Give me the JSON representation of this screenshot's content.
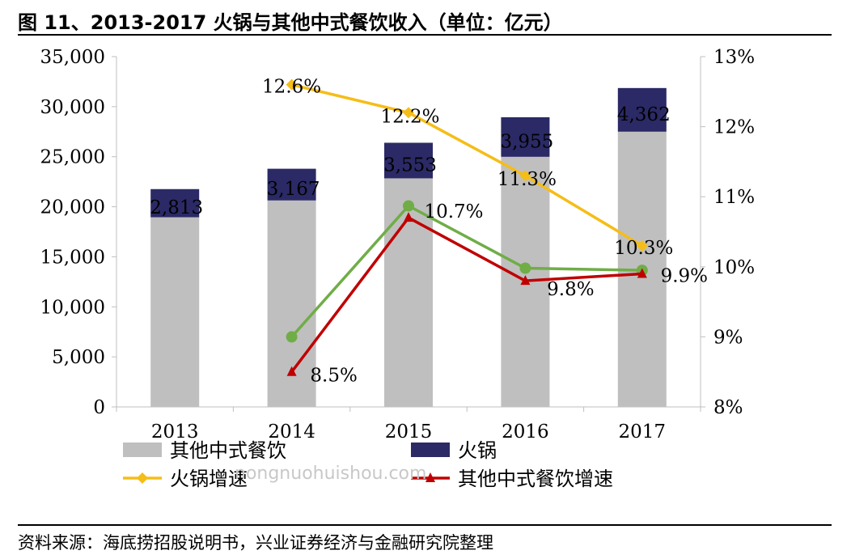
{
  "figure": {
    "title": "图 11、2013-2017 火锅与其他中式餐饮收入（单位：亿元）",
    "source": "资料来源：海底捞招股说明书，兴业证券经济与金融研究院整理",
    "watermark": "nongnuohuishou.com"
  },
  "chart_data": {
    "type": "bar",
    "stacked": true,
    "categories": [
      "2013",
      "2014",
      "2015",
      "2016",
      "2017"
    ],
    "series": [
      {
        "name": "其他中式餐饮",
        "type": "bar",
        "axis": "left",
        "color": "#bfbfbf",
        "values": [
          18950,
          20630,
          22840,
          24990,
          27500
        ]
      },
      {
        "name": "火锅",
        "type": "bar",
        "axis": "left",
        "color": "#2b2a66",
        "values": [
          2813,
          3167,
          3553,
          3955,
          4362
        ],
        "labels": [
          "2,813",
          "3,167",
          "3,553",
          "3,955",
          "4,362"
        ]
      },
      {
        "name": "火锅增速",
        "type": "line",
        "axis": "right",
        "color": "#f5bd18",
        "values": [
          null,
          12.6,
          12.2,
          11.3,
          10.3
        ],
        "labels": [
          "",
          "12.6%",
          "12.2%",
          "11.3%",
          "10.3%"
        ]
      },
      {
        "name": "其他中式餐饮增速",
        "type": "line",
        "axis": "right",
        "color": "#c00000",
        "values": [
          null,
          8.5,
          10.7,
          9.8,
          9.9
        ],
        "labels": [
          "",
          "8.5%",
          "10.7%",
          "9.8%",
          "9.9%"
        ]
      },
      {
        "name": "",
        "type": "line",
        "axis": "right",
        "color": "#70ad47",
        "values": [
          null,
          9.0,
          10.87,
          9.98,
          9.95
        ]
      }
    ],
    "y_left": {
      "min": 0,
      "max": 35000,
      "ticks": [
        "0",
        "5,000",
        "10,000",
        "15,000",
        "20,000",
        "25,000",
        "30,000",
        "35,000"
      ]
    },
    "y_right": {
      "min": 8,
      "max": 13,
      "ticks": [
        "8%",
        "9%",
        "10%",
        "11%",
        "12%",
        "13%"
      ]
    },
    "legend": [
      {
        "name": "其他中式餐饮",
        "kind": "bar",
        "color": "#bfbfbf"
      },
      {
        "name": "火锅",
        "kind": "bar",
        "color": "#2b2a66"
      },
      {
        "name": "火锅增速",
        "kind": "line",
        "marker": "diamond",
        "color": "#f5bd18"
      },
      {
        "name": "其他中式餐饮增速",
        "kind": "line",
        "marker": "triangle",
        "color": "#c00000"
      }
    ],
    "legend_position": "bottom",
    "grid": false
  }
}
